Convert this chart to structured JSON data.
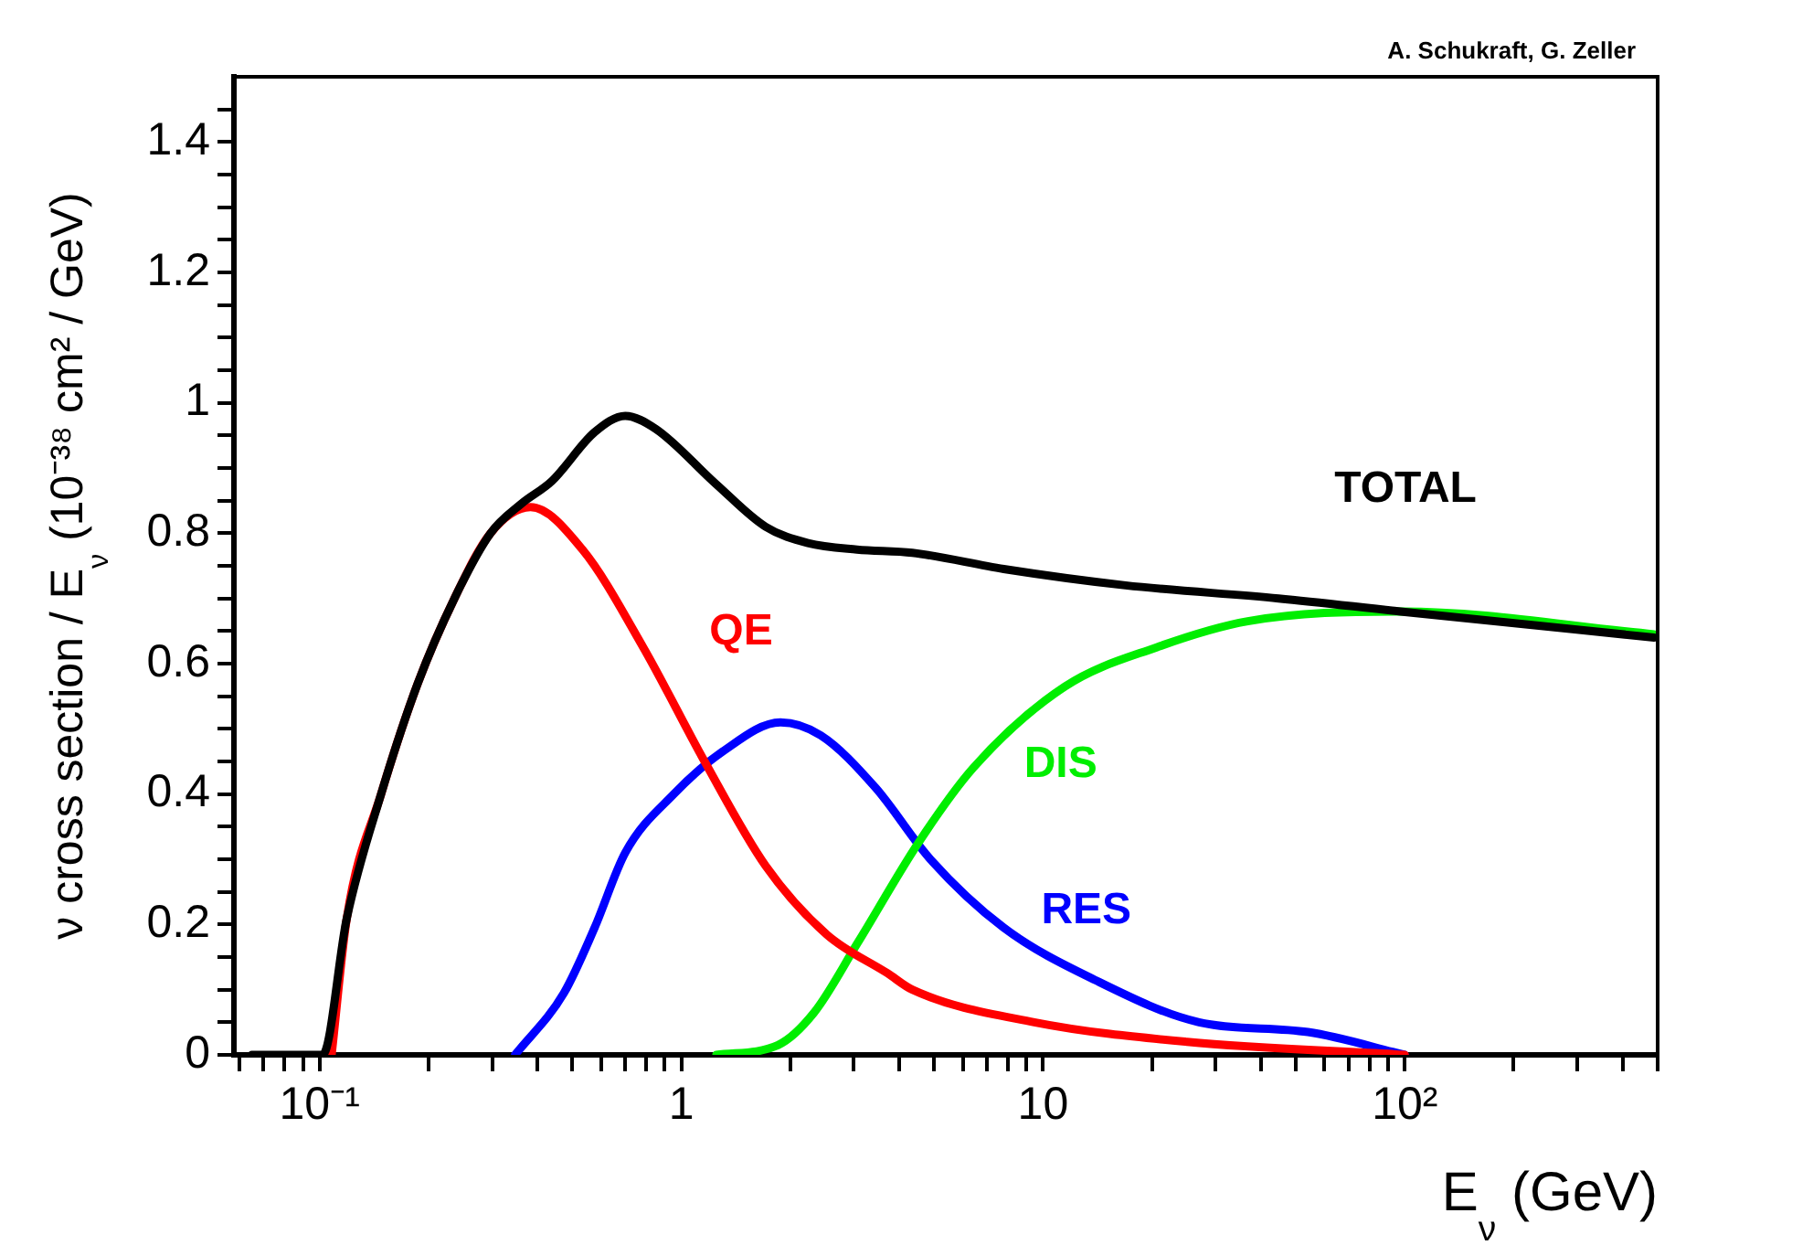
{
  "chart_data": {
    "type": "line",
    "xlabel": "E$_{ν}$ (GeV)",
    "ylabel": "ν cross section / E$_{ν}$ (10⁻³⁸ cm² / GeV)",
    "annotations": [
      "A. Schukraft, G. Zeller"
    ],
    "log": "x",
    "grid": false,
    "legend": false,
    "marker": "none",
    "line_style": "solid",
    "xlim": [
      0.058,
      500
    ],
    "ylim": [
      0,
      1.5
    ],
    "xticks": [
      {
        "value": 0.06,
        "label": null
      },
      {
        "value": 0.07,
        "label": null
      },
      {
        "value": 0.08,
        "label": null
      },
      {
        "value": 0.09,
        "label": null
      },
      {
        "value": 0.1,
        "label": "10⁻¹"
      },
      {
        "value": 0.2,
        "label": null
      },
      {
        "value": 0.3,
        "label": null
      },
      {
        "value": 0.4,
        "label": null
      },
      {
        "value": 0.5,
        "label": null
      },
      {
        "value": 0.6,
        "label": null
      },
      {
        "value": 0.7,
        "label": null
      },
      {
        "value": 0.8,
        "label": null
      },
      {
        "value": 0.9,
        "label": null
      },
      1,
      {
        "value": 2,
        "label": null
      },
      {
        "value": 3,
        "label": null
      },
      {
        "value": 4,
        "label": null
      },
      {
        "value": 5,
        "label": null
      },
      {
        "value": 6,
        "label": null
      },
      {
        "value": 7,
        "label": null
      },
      {
        "value": 8,
        "label": null
      },
      {
        "value": 9,
        "label": null
      },
      10,
      {
        "value": 20,
        "label": null
      },
      {
        "value": 30,
        "label": null
      },
      {
        "value": 40,
        "label": null
      },
      {
        "value": 50,
        "label": null
      },
      {
        "value": 60,
        "label": null
      },
      {
        "value": 70,
        "label": null
      },
      {
        "value": 80,
        "label": null
      },
      {
        "value": 90,
        "label": null
      },
      {
        "value": 100,
        "label": "10²"
      },
      {
        "value": 200,
        "label": null
      },
      {
        "value": 300,
        "label": null
      },
      {
        "value": 400,
        "label": null
      },
      {
        "value": 500,
        "label": null
      }
    ],
    "yticks": [
      0,
      {
        "value": 0.05,
        "label": null
      },
      {
        "value": 0.1,
        "label": null
      },
      {
        "value": 0.15,
        "label": null
      },
      0.2,
      {
        "value": 0.25,
        "label": null
      },
      {
        "value": 0.3,
        "label": null
      },
      {
        "value": 0.35,
        "label": null
      },
      0.4,
      {
        "value": 0.45,
        "label": null
      },
      {
        "value": 0.5,
        "label": null
      },
      {
        "value": 0.55,
        "label": null
      },
      0.6,
      {
        "value": 0.65,
        "label": null
      },
      {
        "value": 0.7,
        "label": null
      },
      {
        "value": 0.75,
        "label": null
      },
      0.8,
      {
        "value": 0.85,
        "label": null
      },
      {
        "value": 0.9,
        "label": null
      },
      {
        "value": 0.95,
        "label": null
      },
      1,
      {
        "value": 1.05,
        "label": null
      },
      {
        "value": 1.1,
        "label": null
      },
      {
        "value": 1.15,
        "label": null
      },
      1.2,
      {
        "value": 1.25,
        "label": null
      },
      {
        "value": 1.3,
        "label": null
      },
      {
        "value": 1.35,
        "label": null
      },
      1.4,
      {
        "value": 1.45,
        "label": null
      }
    ],
    "series": [
      {
        "name": "TOTAL",
        "color": "#000000",
        "x": [
          0.065,
          0.102,
          0.119,
          0.148,
          0.187,
          0.236,
          0.297,
          0.361,
          0.439,
          0.576,
          0.7,
          0.85,
          1.25,
          1.71,
          2.24,
          3.06,
          4.35,
          7.79,
          16.9,
          44.8,
          97.3,
          489
        ],
        "values": [
          0,
          0,
          0.21,
          0.4,
          0.57,
          0.7,
          0.8,
          0.845,
          0.88,
          0.955,
          0.98,
          0.96,
          0.875,
          0.81,
          0.785,
          0.775,
          0.77,
          0.745,
          0.72,
          0.7,
          0.68,
          0.64
        ]
      },
      {
        "name": "QE",
        "color": "#ff0000",
        "x": [
          0.108,
          0.119,
          0.148,
          0.187,
          0.236,
          0.297,
          0.383,
          0.533,
          0.785,
          1.16,
          1.71,
          2.52,
          3.72,
          4.35,
          9.46,
          25,
          100
        ],
        "values": [
          0,
          0.21,
          0.4,
          0.57,
          0.7,
          0.8,
          0.84,
          0.775,
          0.625,
          0.45,
          0.29,
          0.185,
          0.125,
          0.1,
          0.05,
          0.02,
          0
        ]
      },
      {
        "name": "DIS",
        "color": "#00ee00",
        "x": [
          1.25,
          1.85,
          2.33,
          3.06,
          4.52,
          6.41,
          11.5,
          20.6,
          36.8,
          98,
          489
        ],
        "values": [
          0,
          0.015,
          0.065,
          0.17,
          0.325,
          0.44,
          0.565,
          0.625,
          0.665,
          0.68,
          0.645
        ]
      },
      {
        "name": "RES",
        "color": "#0000ff",
        "x": [
          0.347,
          0.474,
          0.576,
          0.7,
          0.954,
          1.3,
          1.88,
          2.43,
          3.44,
          4.88,
          7.79,
          13.9,
          27,
          54,
          100
        ],
        "values": [
          0,
          0.095,
          0.195,
          0.31,
          0.4,
          0.465,
          0.51,
          0.49,
          0.41,
          0.3,
          0.195,
          0.115,
          0.05,
          0.035,
          0
        ]
      }
    ]
  }
}
